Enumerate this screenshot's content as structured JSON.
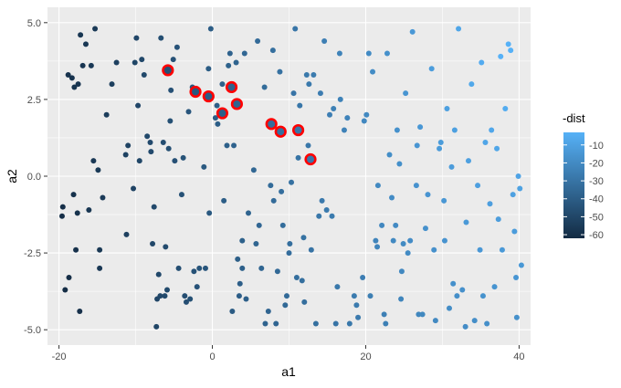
{
  "chart_data": {
    "type": "scatter",
    "xlabel": "a1",
    "ylabel": "a2",
    "xlim": [
      -21.5,
      41.5
    ],
    "ylim": [
      -5.5,
      5.5
    ],
    "x_ticks": [
      -20,
      0,
      20,
      40
    ],
    "y_ticks": [
      -5.0,
      -2.5,
      0.0,
      2.5,
      5.0
    ],
    "y_tick_labels": [
      "-5.0",
      "-2.5",
      "0.0",
      "2.5",
      "5.0"
    ],
    "grid": true,
    "legend": {
      "title": "-dist",
      "placement": "right",
      "ticks": [
        -10,
        -20,
        -30,
        -40,
        -50,
        -60
      ],
      "range": [
        -62,
        -3
      ],
      "low_color": "#132B43",
      "high_color": "#56B1F7"
    },
    "panel_background": "#EBEBEB",
    "highlight_color": "#FF0000",
    "points": [
      [
        -19.6,
        -1.3
      ],
      [
        -19.5,
        -1.0
      ],
      [
        -19.2,
        -3.7
      ],
      [
        -18.8,
        3.3
      ],
      [
        -18.7,
        -3.3
      ],
      [
        -18.3,
        3.2
      ],
      [
        -18.1,
        -0.6
      ],
      [
        -18.0,
        2.9
      ],
      [
        -17.8,
        -2.4
      ],
      [
        -17.6,
        -1.2
      ],
      [
        -17.5,
        3.0
      ],
      [
        -17.3,
        -4.4
      ],
      [
        -17.2,
        4.6
      ],
      [
        -16.9,
        3.6
      ],
      [
        -16.5,
        4.3
      ],
      [
        -16.1,
        -1.1
      ],
      [
        -15.8,
        3.6
      ],
      [
        -15.5,
        0.5
      ],
      [
        -15.3,
        4.8
      ],
      [
        -14.9,
        0.2
      ],
      [
        -14.7,
        -2.4
      ],
      [
        -14.7,
        -3.0
      ],
      [
        -14.3,
        -0.7
      ],
      [
        -13.8,
        2.0
      ],
      [
        -13.1,
        3.0
      ],
      [
        -12.5,
        3.7
      ],
      [
        -11.3,
        0.7
      ],
      [
        -11.2,
        -1.9
      ],
      [
        -11.0,
        1.0
      ],
      [
        -10.3,
        -0.4
      ],
      [
        -10.1,
        3.7
      ],
      [
        -9.9,
        4.5
      ],
      [
        -9.7,
        2.3
      ],
      [
        -9.5,
        0.5
      ],
      [
        -9.2,
        3.8
      ],
      [
        -8.9,
        3.3
      ],
      [
        -8.5,
        1.3
      ],
      [
        -8.1,
        1.1
      ],
      [
        -8.0,
        0.8
      ],
      [
        -7.8,
        -2.2
      ],
      [
        -7.6,
        -1.0
      ],
      [
        -7.3,
        -4.9
      ],
      [
        -7.2,
        -4.0
      ],
      [
        -7.0,
        -3.2
      ],
      [
        -6.8,
        -3.9
      ],
      [
        -6.7,
        4.5
      ],
      [
        -6.4,
        1.1
      ],
      [
        -6.2,
        -3.9
      ],
      [
        -6.1,
        -2.3
      ],
      [
        -5.9,
        -3.7
      ],
      [
        -5.7,
        0.9
      ],
      [
        -5.5,
        1.8
      ],
      [
        -5.4,
        2.8
      ],
      [
        -5.1,
        3.8
      ],
      [
        -4.9,
        0.5
      ],
      [
        -4.6,
        4.2
      ],
      [
        -4.4,
        -3.0
      ],
      [
        -4.0,
        -0.6
      ],
      [
        -3.8,
        0.6
      ],
      [
        -3.6,
        -3.9
      ],
      [
        -3.4,
        -4.1
      ],
      [
        -3.1,
        2.1
      ],
      [
        -2.9,
        -4.0
      ],
      [
        -2.6,
        2.9
      ],
      [
        -2.4,
        -3.1
      ],
      [
        -2.0,
        -3.6
      ],
      [
        -1.7,
        -3.0
      ],
      [
        -1.1,
        0.3
      ],
      [
        -0.9,
        -3.0
      ],
      [
        -0.5,
        3.5
      ],
      [
        -0.4,
        -1.2
      ],
      [
        -0.2,
        4.8
      ],
      [
        0.4,
        1.9
      ],
      [
        0.6,
        2.3
      ],
      [
        0.7,
        1.7
      ],
      [
        1.3,
        3.0
      ],
      [
        1.5,
        -0.8
      ],
      [
        1.9,
        1.0
      ],
      [
        2.1,
        3.6
      ],
      [
        2.3,
        4.0
      ],
      [
        2.6,
        -4.4
      ],
      [
        2.8,
        1.0
      ],
      [
        3.1,
        3.7
      ],
      [
        3.3,
        -2.7
      ],
      [
        3.5,
        -3.9
      ],
      [
        3.6,
        -3.5
      ],
      [
        3.9,
        -3.0
      ],
      [
        3.9,
        -2.1
      ],
      [
        4.2,
        4.0
      ],
      [
        4.4,
        -4.0
      ],
      [
        4.7,
        -1.2
      ],
      [
        5.4,
        0.2
      ],
      [
        5.7,
        -2.2
      ],
      [
        5.9,
        4.4
      ],
      [
        6.1,
        -1.6
      ],
      [
        6.4,
        -3.0
      ],
      [
        6.8,
        2.9
      ],
      [
        6.9,
        -4.8
      ],
      [
        7.3,
        -4.4
      ],
      [
        7.6,
        -0.3
      ],
      [
        7.9,
        4.1
      ],
      [
        8.0,
        -0.8
      ],
      [
        8.3,
        -4.8
      ],
      [
        8.5,
        -3.1
      ],
      [
        8.8,
        3.4
      ],
      [
        9.0,
        -0.5
      ],
      [
        9.2,
        -1.6
      ],
      [
        9.5,
        -4.2
      ],
      [
        9.7,
        -3.9
      ],
      [
        10.0,
        -2.5
      ],
      [
        10.1,
        -2.2
      ],
      [
        10.3,
        -0.2
      ],
      [
        10.6,
        2.7
      ],
      [
        10.8,
        4.8
      ],
      [
        11.0,
        -3.3
      ],
      [
        11.2,
        0.6
      ],
      [
        11.4,
        2.3
      ],
      [
        11.7,
        -3.4
      ],
      [
        11.9,
        -2.0
      ],
      [
        12.0,
        -4.1
      ],
      [
        12.3,
        3.3
      ],
      [
        12.5,
        1.0
      ],
      [
        12.6,
        3.0
      ],
      [
        12.9,
        -2.4
      ],
      [
        13.2,
        3.3
      ],
      [
        13.5,
        -4.8
      ],
      [
        13.9,
        -1.3
      ],
      [
        14.1,
        2.7
      ],
      [
        14.3,
        -0.8
      ],
      [
        14.6,
        4.4
      ],
      [
        14.9,
        -1.1
      ],
      [
        15.3,
        2.0
      ],
      [
        15.6,
        -1.3
      ],
      [
        15.8,
        2.2
      ],
      [
        16.1,
        -4.8
      ],
      [
        16.3,
        -3.6
      ],
      [
        16.6,
        4.0
      ],
      [
        16.7,
        2.5
      ],
      [
        17.2,
        1.5
      ],
      [
        17.6,
        1.9
      ],
      [
        17.9,
        -4.8
      ],
      [
        18.5,
        -3.9
      ],
      [
        18.8,
        -4.2
      ],
      [
        19.0,
        -4.6
      ],
      [
        19.6,
        -3.3
      ],
      [
        19.8,
        1.8
      ],
      [
        20.1,
        2.0
      ],
      [
        20.4,
        4.0
      ],
      [
        20.6,
        -3.9
      ],
      [
        20.9,
        3.4
      ],
      [
        21.3,
        -2.1
      ],
      [
        21.6,
        -0.3
      ],
      [
        22.1,
        -1.6
      ],
      [
        22.4,
        -4.5
      ],
      [
        22.6,
        -4.8
      ],
      [
        22.8,
        4.0
      ],
      [
        23.1,
        0.7
      ],
      [
        23.4,
        -0.7
      ],
      [
        23.6,
        -2.1
      ],
      [
        23.9,
        -1.6
      ],
      [
        24.1,
        1.5
      ],
      [
        24.4,
        0.4
      ],
      [
        24.7,
        -3.1
      ],
      [
        24.9,
        -2.2
      ],
      [
        25.2,
        2.7
      ],
      [
        25.5,
        -2.5
      ],
      [
        25.8,
        -2.1
      ],
      [
        26.1,
        4.7
      ],
      [
        26.6,
        -0.3
      ],
      [
        26.9,
        -4.5
      ],
      [
        27.1,
        1.6
      ],
      [
        27.4,
        -4.5
      ],
      [
        27.8,
        -1.7
      ],
      [
        28.1,
        -0.6
      ],
      [
        28.6,
        3.5
      ],
      [
        28.9,
        -2.4
      ],
      [
        29.1,
        -4.7
      ],
      [
        29.6,
        0.9
      ],
      [
        29.8,
        1.1
      ],
      [
        30.2,
        -0.8
      ],
      [
        30.3,
        -2.1
      ],
      [
        30.6,
        2.2
      ],
      [
        30.9,
        -4.3
      ],
      [
        31.2,
        0.3
      ],
      [
        31.4,
        -3.5
      ],
      [
        31.9,
        -3.9
      ],
      [
        32.1,
        4.8
      ],
      [
        32.6,
        -3.7
      ],
      [
        33.1,
        -1.5
      ],
      [
        33.4,
        0.5
      ],
      [
        33.8,
        3.0
      ],
      [
        34.2,
        -4.7
      ],
      [
        34.6,
        -0.3
      ],
      [
        34.9,
        -2.4
      ],
      [
        35.1,
        3.7
      ],
      [
        35.3,
        -3.9
      ],
      [
        35.8,
        -4.8
      ],
      [
        36.2,
        -0.9
      ],
      [
        36.4,
        1.5
      ],
      [
        36.8,
        -3.6
      ],
      [
        37.1,
        0.9
      ],
      [
        37.3,
        -1.4
      ],
      [
        37.6,
        3.9
      ],
      [
        37.8,
        -2.4
      ],
      [
        38.2,
        2.2
      ],
      [
        38.6,
        4.3
      ],
      [
        38.9,
        4.1
      ],
      [
        39.2,
        -0.6
      ],
      [
        39.4,
        -1.8
      ],
      [
        39.6,
        -3.3
      ],
      [
        39.7,
        -4.6
      ],
      [
        39.9,
        0.0
      ],
      [
        40.1,
        -0.4
      ],
      [
        40.3,
        -2.9
      ],
      [
        31.6,
        1.5
      ],
      [
        33.0,
        -4.9
      ],
      [
        35.6,
        1.1
      ],
      [
        26.7,
        1.0
      ],
      [
        21.5,
        -2.3
      ],
      [
        24.6,
        -4.0
      ]
    ],
    "highlighted_points": [
      [
        -5.8,
        3.45
      ],
      [
        -2.2,
        2.75
      ],
      [
        -0.5,
        2.6
      ],
      [
        1.3,
        2.05
      ],
      [
        2.5,
        2.9
      ],
      [
        3.2,
        2.35
      ],
      [
        7.7,
        1.7
      ],
      [
        8.9,
        1.45
      ],
      [
        11.2,
        1.5
      ],
      [
        12.8,
        0.55
      ]
    ]
  }
}
